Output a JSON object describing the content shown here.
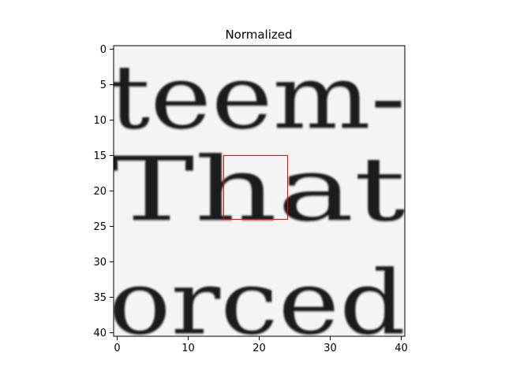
{
  "chart_data": {
    "type": "heatmap",
    "title": "Normalized",
    "xlabel": "",
    "ylabel": "",
    "xlim": [
      -0.5,
      40.5
    ],
    "ylim": [
      40.5,
      -0.5
    ],
    "x_ticks": [
      0,
      10,
      20,
      30,
      40
    ],
    "y_ticks": [
      0,
      5,
      10,
      15,
      20,
      25,
      30,
      35,
      40
    ],
    "x_tick_labels": [
      "0",
      "10",
      "20",
      "30",
      "40"
    ],
    "y_tick_labels": [
      "0",
      "5",
      "10",
      "15",
      "20",
      "25",
      "30",
      "35",
      "40"
    ],
    "colormap": "gray",
    "image_content": {
      "text_lines": [
        {
          "text": "teem-",
          "center_y": 7
        },
        {
          "text": "That",
          "center_y": 20
        },
        {
          "text": "orced",
          "center_y": 36
        }
      ]
    },
    "annotations": [
      {
        "type": "rectangle",
        "x0": 15,
        "y0": 15,
        "x1": 24,
        "y1": 24,
        "color": "#ff0000"
      }
    ],
    "grid": false,
    "legend": "none"
  }
}
